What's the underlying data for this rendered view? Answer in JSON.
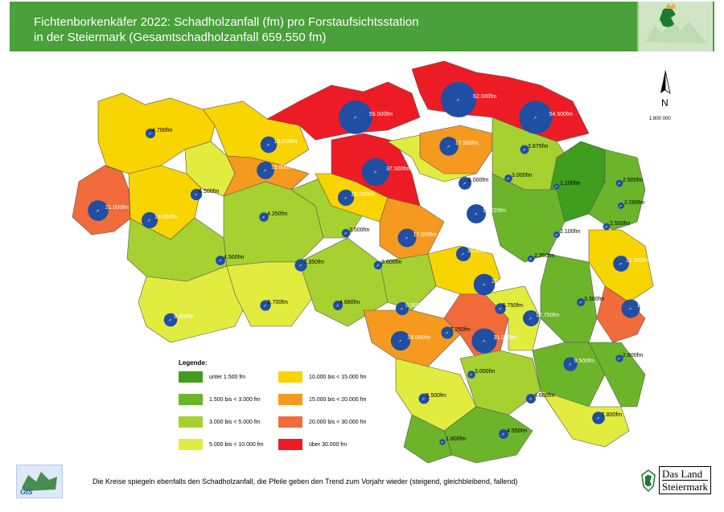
{
  "header": {
    "title_line1": "Fichtenborkenkäfer 2022: Schadholzanfall (fm) pro Forstaufsichtsstation",
    "title_line2": "in der Steiermark (Gesamtschadholzanfall 659.550 fm)"
  },
  "map": {
    "north_label": "N",
    "scale": "1:800 000",
    "stations": [
      {
        "label": "4.700fm",
        "value": 4700,
        "category": "3000-5000"
      },
      {
        "label": "13.500fm",
        "value": 13500,
        "category": "10000-15000"
      },
      {
        "label": "55.500fm",
        "value": 55500,
        "category": "30000+"
      },
      {
        "label": "62.000fm",
        "value": 62000,
        "category": "30000+"
      },
      {
        "label": "54.500fm",
        "value": 54500,
        "category": "30000+"
      },
      {
        "label": "15.000fm",
        "value": 15000,
        "category": "15000-20000"
      },
      {
        "label": "37.500fm",
        "value": 37500,
        "category": "30000+"
      },
      {
        "label": "17.500fm",
        "value": 17500,
        "category": "15000-20000"
      },
      {
        "label": "3.875fm",
        "value": 3875,
        "category": "3000-5000"
      },
      {
        "label": "8.000fm",
        "value": 8000,
        "category": "5000-10000"
      },
      {
        "label": "3.000fm",
        "value": 3000,
        "category": "3000-5000"
      },
      {
        "label": "2.500fm",
        "value": 2500,
        "category": "1500-3000"
      },
      {
        "label": "21.000fm",
        "value": 21000,
        "category": "20000-30000"
      },
      {
        "label": "6.500fm",
        "value": 6500,
        "category": "5000-10000"
      },
      {
        "label": "13.000fm",
        "value": 13000,
        "category": "10000-15000"
      },
      {
        "label": "1.100fm",
        "value": 1100,
        "category": "<1500"
      },
      {
        "label": "2.000fm",
        "value": 2000,
        "category": "1500-3000"
      },
      {
        "label": "13.000fm",
        "value": 13000,
        "category": "10000-15000"
      },
      {
        "label": "4.250fm",
        "value": 4250,
        "category": "3000-5000"
      },
      {
        "label": "18.220fm",
        "value": 18220,
        "category": "15000-20000"
      },
      {
        "label": "3.500fm",
        "value": 3500,
        "category": "3000-5000"
      },
      {
        "label": "17.000fm",
        "value": 17000,
        "category": "15000-20000"
      },
      {
        "label": "2.500fm",
        "value": 2500,
        "category": "1500-3000"
      },
      {
        "label": "2.100fm",
        "value": 2100,
        "category": "1500-3000"
      },
      {
        "label": "4.500fm",
        "value": 4500,
        "category": "3000-5000"
      },
      {
        "label": "10.500fm",
        "value": 10500,
        "category": "10000-15000"
      },
      {
        "label": "2.350fm",
        "value": 2350,
        "category": "1500-3000"
      },
      {
        "label": "12.500fm",
        "value": 12500,
        "category": "10000-15000"
      },
      {
        "label": "7.350fm",
        "value": 7350,
        "category": "5000-10000"
      },
      {
        "label": "3.600fm",
        "value": 3600,
        "category": "3000-5000"
      },
      {
        "label": "22.500fm",
        "value": 22500,
        "category": "20000-30000"
      },
      {
        "label": "5.700fm",
        "value": 5700,
        "category": "5000-10000"
      },
      {
        "label": "4.680fm",
        "value": 4680,
        "category": "3000-5000"
      },
      {
        "label": "8.500fm",
        "value": 8500,
        "category": "5000-10000"
      },
      {
        "label": "5.750fm",
        "value": 5750,
        "category": "5000-10000"
      },
      {
        "label": "12.750fm",
        "value": 12750,
        "category": "10000-15000"
      },
      {
        "label": "3.300fm",
        "value": 3300,
        "category": "3000-5000"
      },
      {
        "label": "17.000fm",
        "value": 17000,
        "category": "15000-20000"
      },
      {
        "label": "8.800fm",
        "value": 8800,
        "category": "5000-10000"
      },
      {
        "label": "19.000fm",
        "value": 19000,
        "category": "15000-20000"
      },
      {
        "label": "7.250fm",
        "value": 7250,
        "category": "5000-10000"
      },
      {
        "label": "31.000fm",
        "value": 31000,
        "category": "30000+"
      },
      {
        "label": "2.800fm",
        "value": 2800,
        "category": "1500-3000"
      },
      {
        "label": "9.500fm",
        "value": 9500,
        "category": "5000-10000"
      },
      {
        "label": "3.000fm",
        "value": 3000,
        "category": "3000-5000"
      },
      {
        "label": "5.500fm",
        "value": 5500,
        "category": "5000-10000"
      },
      {
        "label": "4.600fm",
        "value": 4600,
        "category": "3000-5000"
      },
      {
        "label": "7.800fm",
        "value": 7800,
        "category": "5000-10000"
      },
      {
        "label": "4.550fm",
        "value": 4550,
        "category": "3000-5000"
      },
      {
        "label": "1.800fm",
        "value": 1800,
        "category": "1500-3000"
      }
    ]
  },
  "legend": {
    "title": "Legende:",
    "items": [
      {
        "label": "unter  1.500 fm",
        "color": "#3f9e1d"
      },
      {
        "label": "1.500 bis <  3.000 fm",
        "color": "#6cb52a"
      },
      {
        "label": "3.000 bis <  5.000 fm",
        "color": "#a6d131"
      },
      {
        "label": "5.000 bis < 10.000 fm",
        "color": "#e2ec3f"
      },
      {
        "label": "10.000 bis < 15.000 fm",
        "color": "#f8d400"
      },
      {
        "label": "15.000 bis < 20.000 fm",
        "color": "#f59a1f"
      },
      {
        "label": "20.000 bis < 30.000 fm",
        "color": "#f26b3a"
      },
      {
        "label": "über 30.000 fm",
        "color": "#ed1c24"
      }
    ]
  },
  "footer": {
    "note": "Die Kreise spiegeln ebenfalls den Schadholzanfall, die Pfeile geben den Trend zum Vorjahr wieder (steigend, gleichbleibend, fallend)",
    "gis_label": "GIS",
    "brand_line1": "Das Land",
    "brand_line2": "Steiermark"
  },
  "colors": {
    "header_green": "#4aa03a",
    "bubble_blue": "#1f4ea3",
    "border": "#555555"
  }
}
